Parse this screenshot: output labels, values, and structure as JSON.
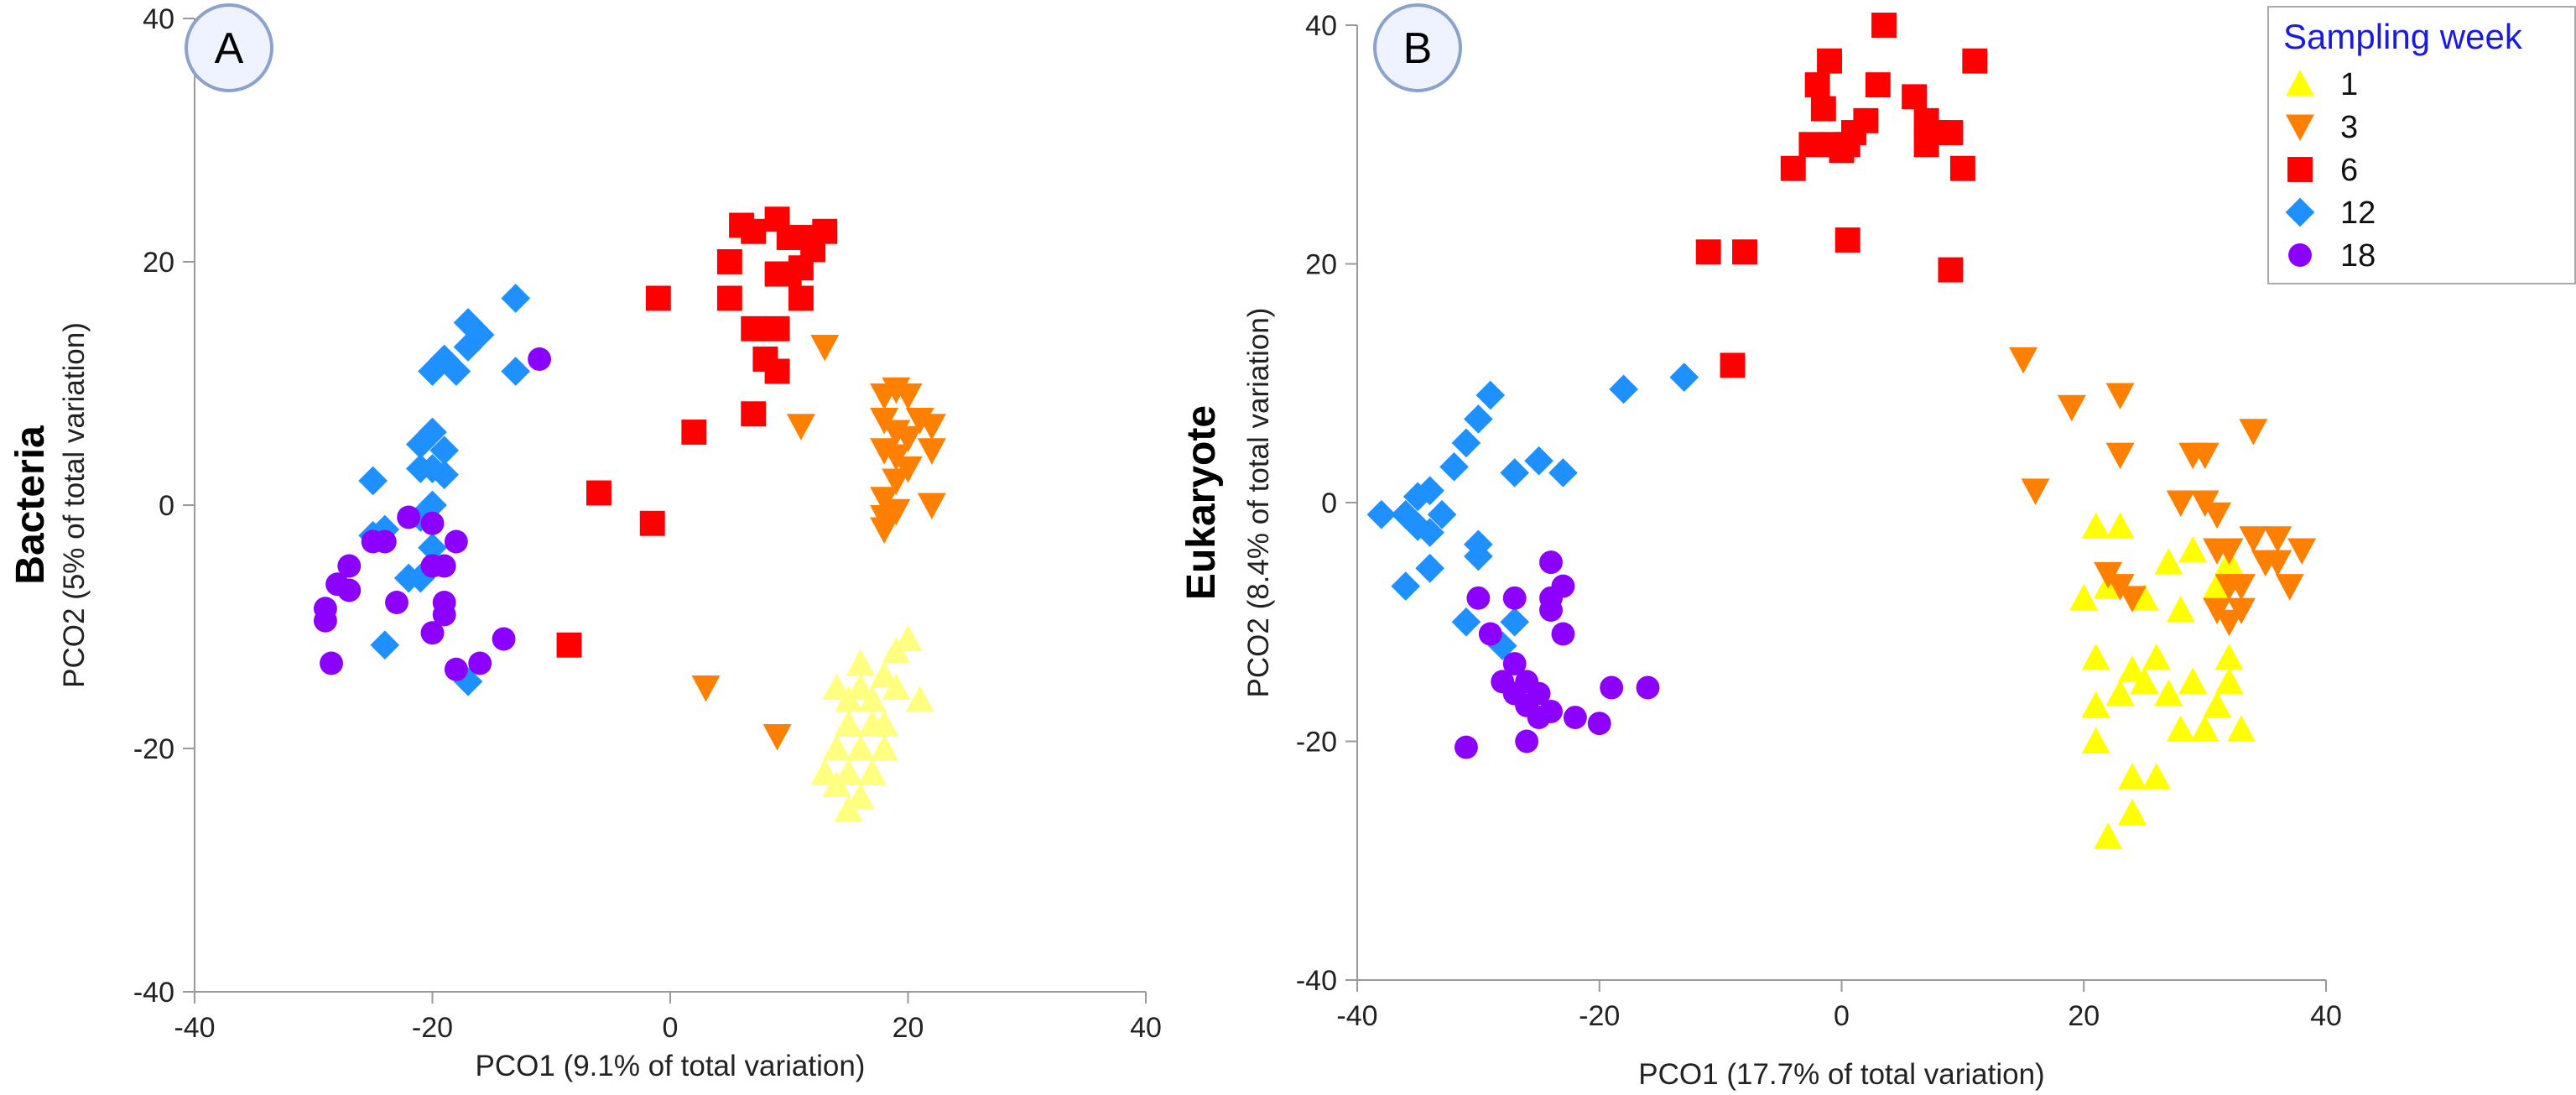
{
  "figure": {
    "legend": {
      "title": "Sampling week",
      "title_color": "#1a1ae6",
      "entries": [
        {
          "label": "1",
          "shape": "triangle-up",
          "color": "#ffff00"
        },
        {
          "label": "3",
          "shape": "triangle-down",
          "color": "#ff8000"
        },
        {
          "label": "6",
          "shape": "square",
          "color": "#ff0000"
        },
        {
          "label": "12",
          "shape": "diamond",
          "color": "#1e90ff"
        },
        {
          "label": "18",
          "shape": "circle",
          "color": "#8b00ff"
        }
      ]
    },
    "colors": {
      "week1_bacteria": "#ffff80",
      "week1": "#ffff00",
      "week3": "#ff8000",
      "week6": "#ff0000",
      "week12": "#1e90ff",
      "week18": "#8b00ff",
      "axis": "#999999",
      "badge_border": "#8aa2cc",
      "badge_fill": "#eef3ff"
    }
  },
  "chart_data": [
    {
      "type": "scatter",
      "panel_label": "A",
      "row_label": "Bacteria",
      "xlabel": "PCO1 (9.1% of total variation)",
      "ylabel": "PCO2 (5% of total variation)",
      "xlim": [
        -40,
        40
      ],
      "ylim": [
        -40,
        40
      ],
      "xticks": [
        "-40",
        "-20",
        "0",
        "20",
        "40"
      ],
      "yticks": [
        "-40",
        "-20",
        "0",
        "20",
        "40"
      ],
      "series": [
        {
          "name": "1",
          "shape": "triangle-up",
          "color": "#ffff80",
          "points": [
            [
              14,
              -15
            ],
            [
              15,
              -16
            ],
            [
              16,
              -15
            ],
            [
              17,
              -16
            ],
            [
              18,
              -14
            ],
            [
              19,
              -12
            ],
            [
              20,
              -11
            ],
            [
              21,
              -16
            ],
            [
              15,
              -18
            ],
            [
              17,
              -18
            ],
            [
              18,
              -18
            ],
            [
              14,
              -20
            ],
            [
              16,
              -20
            ],
            [
              18,
              -20
            ],
            [
              13,
              -22
            ],
            [
              15,
              -22
            ],
            [
              17,
              -22
            ],
            [
              14,
              -23
            ],
            [
              16,
              -24
            ],
            [
              15,
              -25
            ],
            [
              19,
              -15
            ],
            [
              16,
              -13
            ]
          ]
        },
        {
          "name": "3",
          "shape": "triangle-down",
          "color": "#ff8000",
          "points": [
            [
              13,
              13
            ],
            [
              11,
              6.5
            ],
            [
              18,
              9
            ],
            [
              19,
              9.5
            ],
            [
              20,
              9
            ],
            [
              18,
              7
            ],
            [
              19,
              6
            ],
            [
              20,
              5.5
            ],
            [
              21,
              7
            ],
            [
              22,
              6.5
            ],
            [
              18,
              4.5
            ],
            [
              19,
              4
            ],
            [
              20,
              3
            ],
            [
              22,
              4.5
            ],
            [
              19,
              2
            ],
            [
              18,
              0.5
            ],
            [
              22,
              0
            ],
            [
              19,
              -0.5
            ],
            [
              18,
              -1
            ],
            [
              18,
              -2
            ],
            [
              3,
              -15
            ],
            [
              9,
              -19
            ]
          ]
        },
        {
          "name": "6",
          "shape": "square",
          "color": "#ff0000",
          "points": [
            [
              6,
              23
            ],
            [
              7,
              22.5
            ],
            [
              9,
              23.5
            ],
            [
              10,
              22
            ],
            [
              12,
              22
            ],
            [
              13,
              22.5
            ],
            [
              5,
              20
            ],
            [
              9,
              19
            ],
            [
              10,
              19
            ],
            [
              11,
              19.5
            ],
            [
              12,
              21
            ],
            [
              5,
              17
            ],
            [
              11,
              17
            ],
            [
              7,
              14.5
            ],
            [
              9,
              14.5
            ],
            [
              8,
              12
            ],
            [
              9,
              11
            ],
            [
              7,
              7.5
            ],
            [
              -1,
              17
            ],
            [
              2,
              6
            ],
            [
              -6,
              1
            ],
            [
              -1.5,
              -1.5
            ],
            [
              -8.5,
              -11.5
            ]
          ]
        },
        {
          "name": "12",
          "shape": "diamond",
          "color": "#1e90ff",
          "points": [
            [
              -13,
              17
            ],
            [
              -17,
              15
            ],
            [
              -16,
              14
            ],
            [
              -17,
              13
            ],
            [
              -19,
              12
            ],
            [
              -18,
              11
            ],
            [
              -20,
              11
            ],
            [
              -13,
              11
            ],
            [
              -20,
              6
            ],
            [
              -21,
              5
            ],
            [
              -19,
              4.5
            ],
            [
              -21,
              3
            ],
            [
              -20,
              3
            ],
            [
              -19,
              2.5
            ],
            [
              -25,
              2
            ],
            [
              -20,
              0
            ],
            [
              -21,
              -1
            ],
            [
              -24,
              -2
            ],
            [
              -25,
              -2.5
            ],
            [
              -20,
              -3.5
            ],
            [
              -22,
              -6
            ],
            [
              -24,
              -11.5
            ],
            [
              -17,
              -14.5
            ],
            [
              -21,
              -6
            ]
          ]
        },
        {
          "name": "18",
          "shape": "circle",
          "color": "#8b00ff",
          "points": [
            [
              -11,
              12
            ],
            [
              -22,
              -1
            ],
            [
              -20,
              -1.5
            ],
            [
              -25,
              -3
            ],
            [
              -24,
              -3
            ],
            [
              -18,
              -3
            ],
            [
              -27,
              -5
            ],
            [
              -28,
              -6.5
            ],
            [
              -27,
              -7
            ],
            [
              -20,
              -5
            ],
            [
              -19,
              -5
            ],
            [
              -23,
              -8
            ],
            [
              -19,
              -8
            ],
            [
              -19,
              -9
            ],
            [
              -29,
              -8.5
            ],
            [
              -29,
              -9.5
            ],
            [
              -20,
              -10.5
            ],
            [
              -14,
              -11
            ],
            [
              -28.5,
              -13
            ],
            [
              -16,
              -13
            ],
            [
              -18,
              -13.5
            ]
          ]
        }
      ]
    },
    {
      "type": "scatter",
      "panel_label": "B",
      "row_label": "Eukaryote",
      "xlabel": "PCO1 (17.7% of total variation)",
      "ylabel": "PCO2 (8.4% of total variation)",
      "xlim": [
        -40,
        40
      ],
      "ylim": [
        -40,
        40
      ],
      "xticks": [
        "-40",
        "-20",
        "0",
        "20",
        "40"
      ],
      "yticks": [
        "-40",
        "-20",
        "0",
        "20",
        "40"
      ],
      "series": [
        {
          "name": "1",
          "shape": "triangle-up",
          "color": "#ffff00",
          "points": [
            [
              21,
              -2
            ],
            [
              23,
              -2
            ],
            [
              27,
              -5
            ],
            [
              29,
              -4
            ],
            [
              31,
              -7
            ],
            [
              32,
              -5
            ],
            [
              20,
              -8
            ],
            [
              22,
              -7
            ],
            [
              25,
              -8
            ],
            [
              28,
              -9
            ],
            [
              21,
              -13
            ],
            [
              24,
              -14
            ],
            [
              26,
              -13
            ],
            [
              32,
              -13
            ],
            [
              23,
              -16
            ],
            [
              25,
              -15
            ],
            [
              27,
              -16
            ],
            [
              29,
              -15
            ],
            [
              32,
              -15
            ],
            [
              21,
              -17
            ],
            [
              31,
              -17
            ],
            [
              28,
              -19
            ],
            [
              30,
              -19
            ],
            [
              33,
              -19
            ],
            [
              21,
              -20
            ],
            [
              24,
              -23
            ],
            [
              26,
              -23
            ],
            [
              24,
              -26
            ],
            [
              22,
              -28
            ]
          ]
        },
        {
          "name": "3",
          "shape": "triangle-down",
          "color": "#ff8000",
          "points": [
            [
              15,
              12
            ],
            [
              19,
              8
            ],
            [
              23,
              9
            ],
            [
              23,
              4
            ],
            [
              29,
              4
            ],
            [
              30,
              4
            ],
            [
              34,
              6
            ],
            [
              16,
              1
            ],
            [
              28,
              0
            ],
            [
              30,
              0
            ],
            [
              31,
              -1
            ],
            [
              34,
              -3
            ],
            [
              36,
              -3
            ],
            [
              38,
              -4
            ],
            [
              32,
              -4
            ],
            [
              35,
              -5
            ],
            [
              36,
              -5
            ],
            [
              32,
              -7
            ],
            [
              33,
              -7
            ],
            [
              37,
              -7
            ],
            [
              31,
              -9
            ],
            [
              33,
              -9
            ],
            [
              32,
              -10
            ],
            [
              31,
              -4
            ],
            [
              23,
              -7
            ],
            [
              24,
              -8
            ],
            [
              22,
              -6
            ]
          ]
        },
        {
          "name": "6",
          "shape": "square",
          "color": "#ff0000",
          "points": [
            [
              3.5,
              40
            ],
            [
              -1,
              37
            ],
            [
              11,
              37
            ],
            [
              -2,
              35
            ],
            [
              3,
              35
            ],
            [
              6,
              34
            ],
            [
              -1.5,
              33
            ],
            [
              7,
              32
            ],
            [
              8,
              31
            ],
            [
              1,
              31
            ],
            [
              -2.5,
              30
            ],
            [
              -0.5,
              30
            ],
            [
              0.5,
              30
            ],
            [
              0,
              29.5
            ],
            [
              2,
              32
            ],
            [
              7,
              30
            ],
            [
              9,
              31
            ],
            [
              -4,
              28
            ],
            [
              10,
              28
            ],
            [
              0.5,
              22
            ],
            [
              9,
              19.5
            ],
            [
              -11,
              21
            ],
            [
              -8,
              21
            ],
            [
              -9,
              11.5
            ]
          ]
        },
        {
          "name": "12",
          "shape": "diamond",
          "color": "#1e90ff",
          "points": [
            [
              -18,
              9.5
            ],
            [
              -13,
              10.5
            ],
            [
              -29,
              9
            ],
            [
              -30,
              7
            ],
            [
              -31,
              5
            ],
            [
              -32,
              3
            ],
            [
              -34,
              1
            ],
            [
              -35,
              0.5
            ],
            [
              -33,
              -1
            ],
            [
              -35,
              -2
            ],
            [
              -36,
              -1
            ],
            [
              -38,
              -1
            ],
            [
              -34,
              -2.5
            ],
            [
              -30,
              -3.5
            ],
            [
              -30,
              -4.5
            ],
            [
              -34,
              -5.5
            ],
            [
              -36,
              -7
            ],
            [
              -27,
              2.5
            ],
            [
              -25,
              3.5
            ],
            [
              -23,
              2.5
            ],
            [
              -27,
              -10
            ],
            [
              -28,
              -12
            ],
            [
              -31,
              -10
            ]
          ]
        },
        {
          "name": "18",
          "shape": "circle",
          "color": "#8b00ff",
          "points": [
            [
              -24,
              -5
            ],
            [
              -30,
              -8
            ],
            [
              -27,
              -8
            ],
            [
              -24,
              -8
            ],
            [
              -23,
              -7
            ],
            [
              -24,
              -9
            ],
            [
              -29,
              -11
            ],
            [
              -23,
              -11
            ],
            [
              -27,
              -13.5
            ],
            [
              -28,
              -15
            ],
            [
              -26,
              -15
            ],
            [
              -27,
              -16
            ],
            [
              -25,
              -16
            ],
            [
              -19,
              -15.5
            ],
            [
              -16,
              -15.5
            ],
            [
              -26,
              -17
            ],
            [
              -24,
              -17.5
            ],
            [
              -22,
              -18
            ],
            [
              -25,
              -18
            ],
            [
              -20,
              -18.5
            ],
            [
              -26,
              -20
            ],
            [
              -31,
              -20.5
            ]
          ]
        }
      ]
    }
  ]
}
